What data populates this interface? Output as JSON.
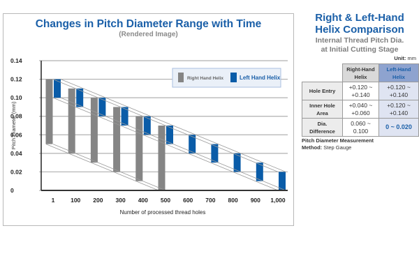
{
  "chart": {
    "title": "Changes in Pitch Diameter Range with Time",
    "subtitle": "(Rendered Image)"
  },
  "chart_data": {
    "type": "bar",
    "title": "Changes in Pitch Diameter Range with Time",
    "subtitle": "(Rendered Image)",
    "xlabel": "Number of processed thread holes",
    "ylabel": "Pitch Diameter",
    "ylabel_unit": "(mm)",
    "ylim": [
      0,
      0.14
    ],
    "yticks": [
      "0",
      "0.02",
      "0.04",
      "0.06",
      "0.08",
      "0.10",
      "0.12",
      "0.14"
    ],
    "ytick_values": [
      0,
      0.02,
      0.04,
      0.06,
      0.08,
      0.1,
      0.12,
      0.14
    ],
    "categories": [
      "1",
      "100",
      "200",
      "300",
      "400",
      "500",
      "600",
      "700",
      "800",
      "900",
      "1,000"
    ],
    "grid": true,
    "legend_position": "top-right",
    "series": [
      {
        "name": "Right Hand Helix",
        "color": "#858585",
        "low": [
          0.05,
          0.04,
          0.03,
          0.02,
          0.01,
          0.0,
          null,
          null,
          null,
          null,
          null
        ],
        "high": [
          0.12,
          0.11,
          0.1,
          0.09,
          0.08,
          0.07,
          null,
          null,
          null,
          null,
          null
        ]
      },
      {
        "name": "Left Hand Helix",
        "color": "#0a5ca8",
        "low": [
          0.1,
          0.09,
          0.08,
          0.07,
          0.06,
          0.05,
          0.04,
          0.03,
          0.02,
          0.01,
          0.0
        ],
        "high": [
          0.12,
          0.11,
          0.1,
          0.09,
          0.08,
          0.07,
          0.06,
          0.05,
          0.04,
          0.03,
          0.02
        ]
      }
    ]
  },
  "side": {
    "title_line1": "Right & Left-Hand",
    "title_line2": "Helix Comparison",
    "sub_line1": "Internal Thread Pitch Dia.",
    "sub_line2": "at Initial Cutting Stage",
    "unit_label": "Unit:",
    "unit_value": "mm",
    "table": {
      "col_right_1": "Right-Hand",
      "col_right_2": "Helix",
      "col_left_1": "Left-Hand",
      "col_left_2": "Helix",
      "rows": [
        {
          "label1": "Hole Entry",
          "label2": "",
          "right1": "+0.120 ~",
          "right2": "+0.140",
          "left1": "+0.120 ~",
          "left2": "+0.140"
        },
        {
          "label1": "Inner Hole",
          "label2": "Area",
          "right1": "+0.040 ~",
          "right2": "+0.060",
          "left1": "+0.120 ~",
          "left2": "+0.140"
        },
        {
          "label1": "Dia.",
          "label2": "Difference",
          "right1": "0.060 ~",
          "right2": "0.100",
          "left1": "0 ~ 0.020",
          "left2": ""
        }
      ]
    },
    "method_line1": "Pitch Diameter Measurement",
    "method_label": "Method:",
    "method_value": "Step Gauge"
  }
}
